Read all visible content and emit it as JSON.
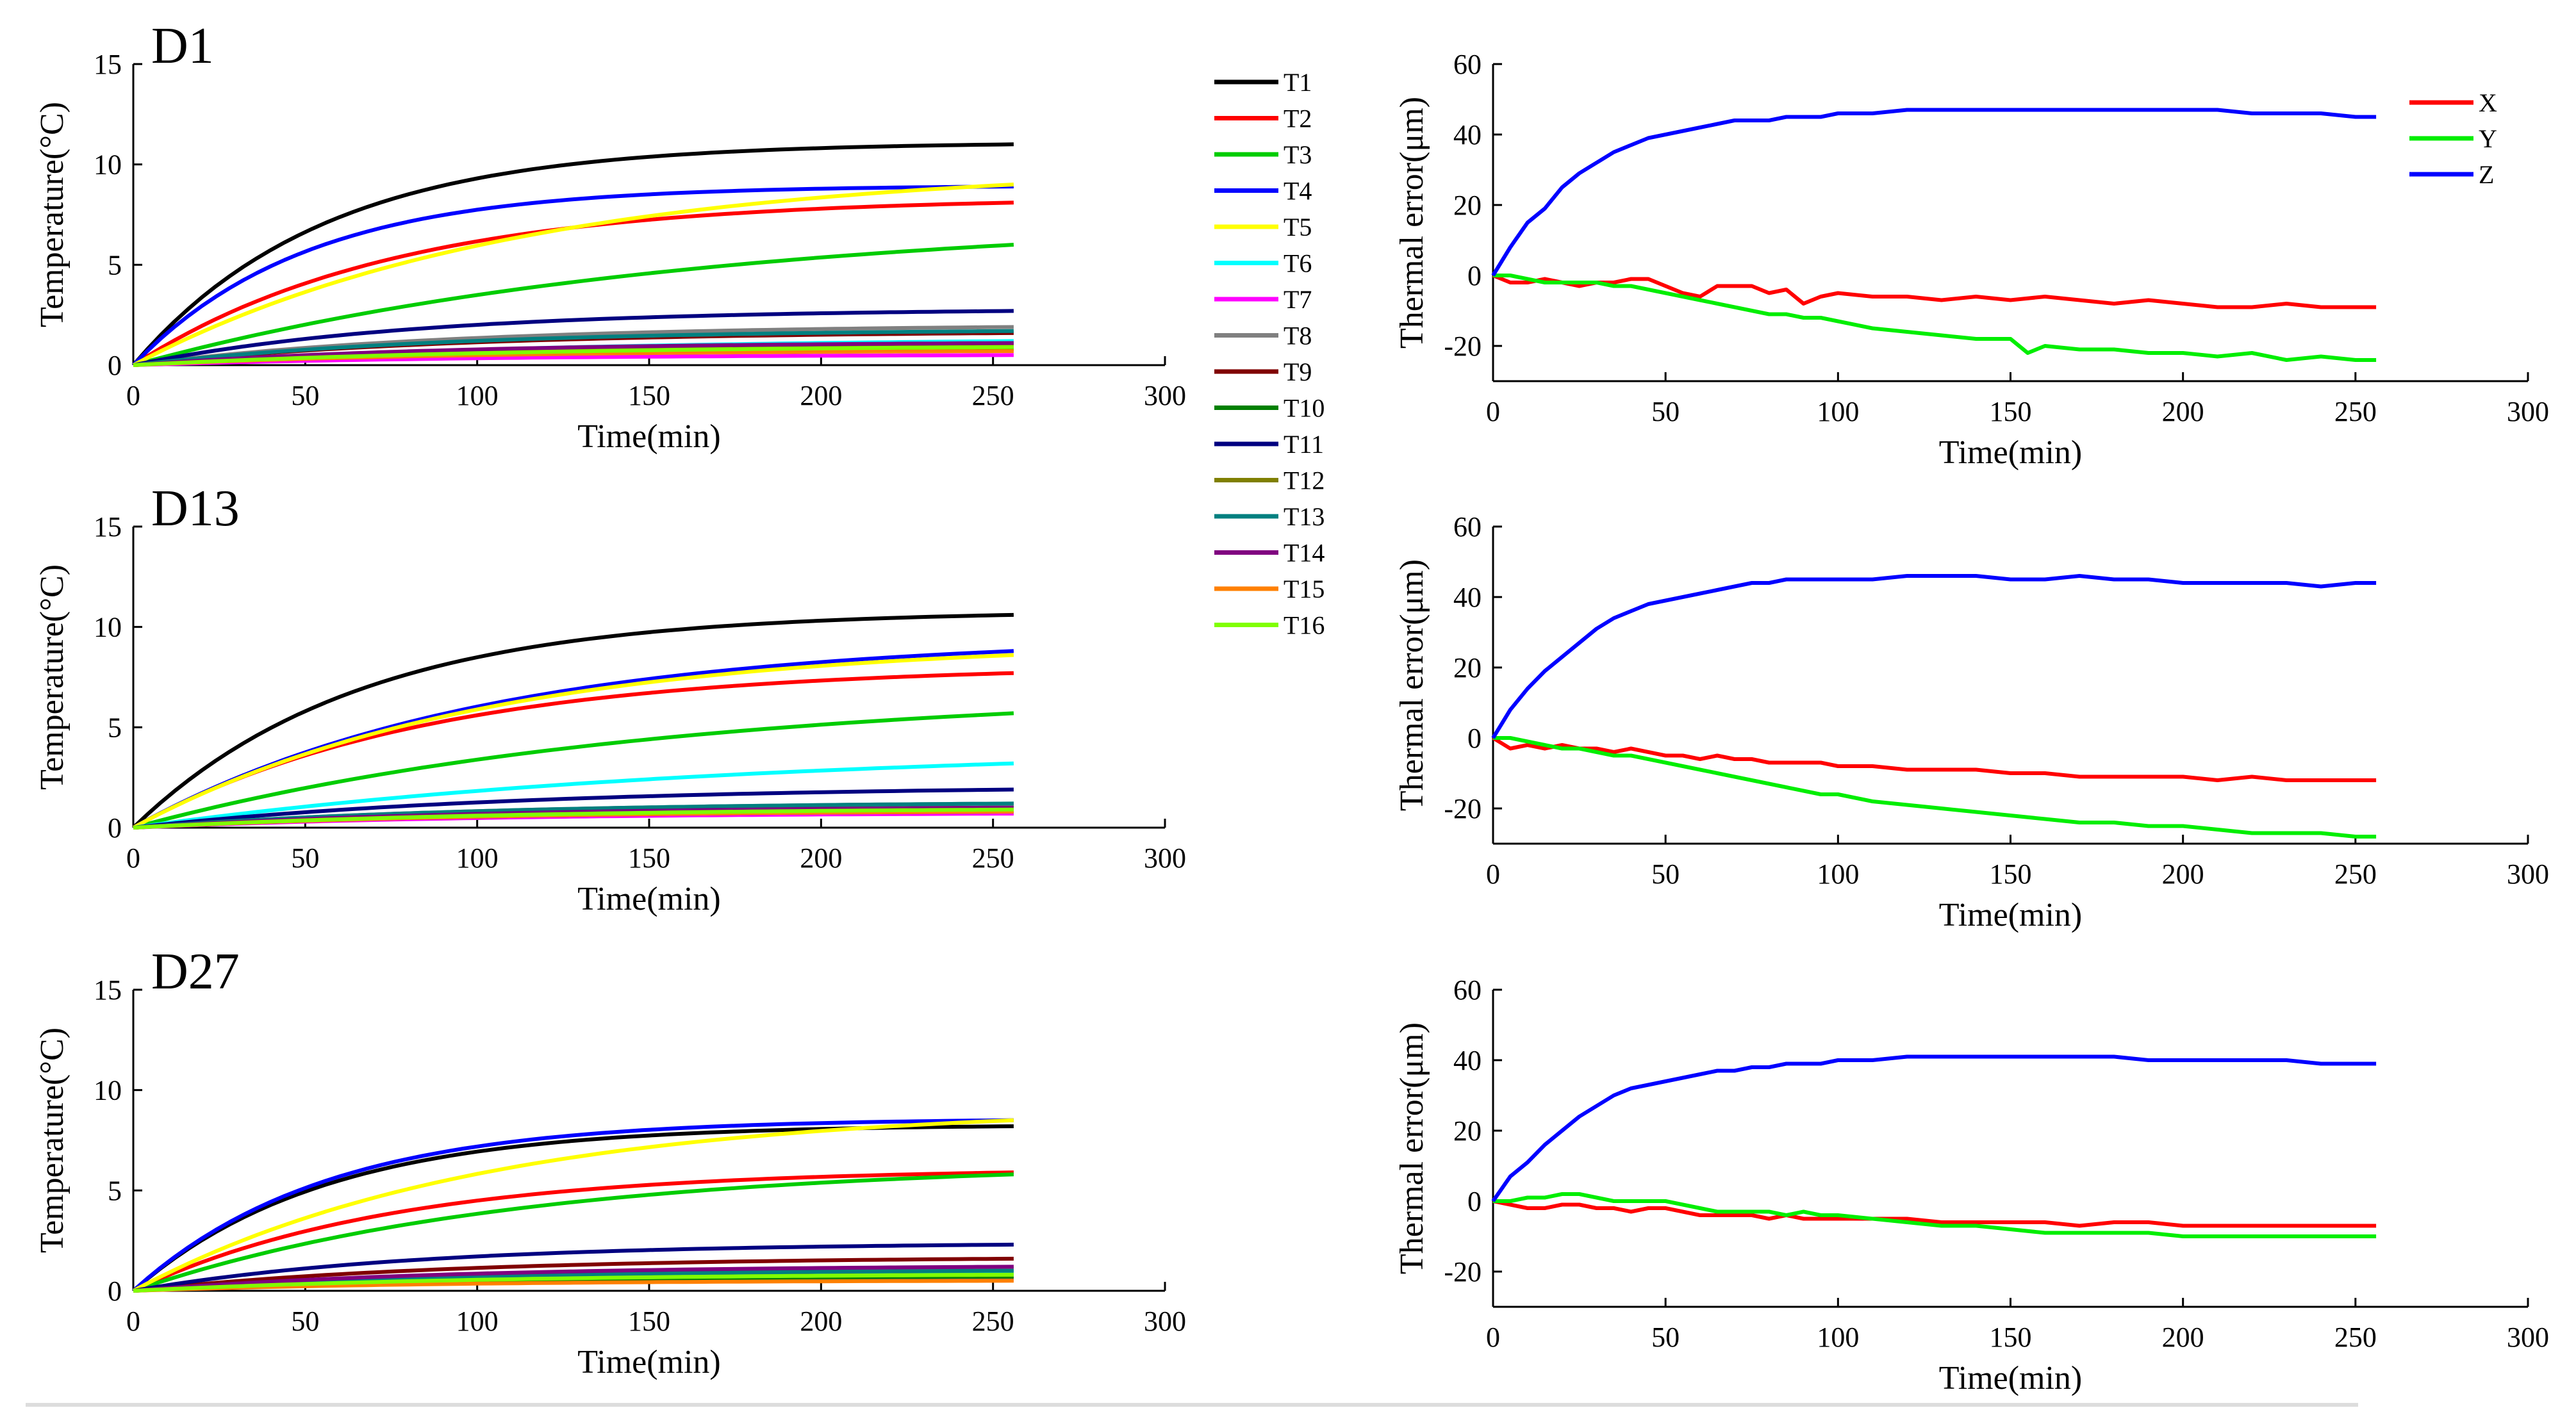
{
  "panels": [
    {
      "id": "temp-d1",
      "type": "temperature",
      "title": "D1",
      "xlabel": "Time(min)",
      "ylabel": "Temperature(°C)",
      "xlim": [
        0,
        300
      ],
      "ylim": [
        0,
        15
      ],
      "xticks": [
        0,
        50,
        100,
        150,
        200,
        250,
        300
      ],
      "yticks": [
        0,
        5,
        10,
        15
      ],
      "final": [
        11.0,
        8.1,
        6.0,
        8.9,
        9.0,
        1.2,
        0.5,
        1.9,
        1.6,
        0.8,
        2.7,
        1.0,
        1.7,
        1.1,
        0.7,
        0.9
      ],
      "tau": [
        55,
        75,
        160,
        50,
        110,
        120,
        100,
        90,
        90,
        90,
        80,
        90,
        90,
        90,
        90,
        110
      ]
    },
    {
      "id": "err-d1",
      "type": "error",
      "title": "",
      "xlabel": "Time(min)",
      "ylabel": "Thermal error(μm)",
      "xlim": [
        0,
        300
      ],
      "ylim": [
        -30,
        60
      ],
      "xticks": [
        0,
        50,
        100,
        150,
        200,
        250,
        300
      ],
      "yticks": [
        -20,
        0,
        20,
        40,
        60
      ],
      "series": [
        {
          "name": "X",
          "color": "#ff0000",
          "x": [
            0,
            5,
            10,
            15,
            20,
            25,
            30,
            35,
            40,
            45,
            50,
            55,
            60,
            65,
            70,
            75,
            80,
            85,
            90,
            95,
            100,
            110,
            120,
            130,
            140,
            150,
            160,
            170,
            180,
            190,
            200,
            210,
            220,
            230,
            240,
            250,
            256
          ],
          "y": [
            0,
            -2,
            -2,
            -1,
            -2,
            -3,
            -2,
            -2,
            -1,
            -1,
            -3,
            -5,
            -6,
            -3,
            -3,
            -3,
            -5,
            -4,
            -8,
            -6,
            -5,
            -6,
            -6,
            -7,
            -6,
            -7,
            -6,
            -7,
            -8,
            -7,
            -8,
            -9,
            -9,
            -8,
            -9,
            -9,
            -9
          ]
        },
        {
          "name": "Y",
          "color": "#00ee00",
          "x": [
            0,
            5,
            10,
            15,
            20,
            25,
            30,
            35,
            40,
            45,
            50,
            55,
            60,
            65,
            70,
            75,
            80,
            85,
            90,
            95,
            100,
            110,
            120,
            130,
            140,
            150,
            155,
            160,
            170,
            180,
            190,
            200,
            210,
            220,
            230,
            240,
            250,
            256
          ],
          "y": [
            0,
            0,
            -1,
            -2,
            -2,
            -2,
            -2,
            -3,
            -3,
            -4,
            -5,
            -6,
            -7,
            -8,
            -9,
            -10,
            -11,
            -11,
            -12,
            -12,
            -13,
            -15,
            -16,
            -17,
            -18,
            -18,
            -22,
            -20,
            -21,
            -21,
            -22,
            -22,
            -23,
            -22,
            -24,
            -23,
            -24,
            -24
          ]
        },
        {
          "name": "Z",
          "color": "#0000ff",
          "x": [
            0,
            5,
            10,
            15,
            20,
            25,
            30,
            35,
            40,
            45,
            50,
            55,
            60,
            65,
            70,
            75,
            80,
            85,
            90,
            95,
            100,
            110,
            120,
            130,
            140,
            150,
            160,
            170,
            180,
            190,
            200,
            210,
            220,
            230,
            240,
            250,
            256
          ],
          "y": [
            0,
            8,
            15,
            19,
            25,
            29,
            32,
            35,
            37,
            39,
            40,
            41,
            42,
            43,
            44,
            44,
            44,
            45,
            45,
            45,
            46,
            46,
            47,
            47,
            47,
            47,
            47,
            47,
            47,
            47,
            47,
            47,
            46,
            46,
            46,
            45,
            45
          ]
        }
      ]
    },
    {
      "id": "temp-d13",
      "type": "temperature",
      "title": "D13",
      "xlabel": "Time(min)",
      "ylabel": "Temperature(°C)",
      "xlim": [
        0,
        300
      ],
      "ylim": [
        0,
        15
      ],
      "xticks": [
        0,
        50,
        100,
        150,
        200,
        250,
        300
      ],
      "yticks": [
        0,
        5,
        10,
        15
      ],
      "final": [
        10.6,
        7.7,
        5.7,
        8.8,
        8.6,
        3.2,
        0.7,
        1.2,
        0.9,
        0.8,
        1.9,
        1.0,
        1.2,
        1.0,
        0.8,
        0.9
      ],
      "tau": [
        65,
        85,
        150,
        100,
        100,
        170,
        100,
        100,
        100,
        100,
        110,
        100,
        100,
        100,
        100,
        110
      ]
    },
    {
      "id": "err-d13",
      "type": "error",
      "title": "",
      "xlabel": "Time(min)",
      "ylabel": "Thermal error(μm)",
      "xlim": [
        0,
        300
      ],
      "ylim": [
        -30,
        60
      ],
      "xticks": [
        0,
        50,
        100,
        150,
        200,
        250,
        300
      ],
      "yticks": [
        -20,
        0,
        20,
        40,
        60
      ],
      "series": [
        {
          "name": "X",
          "color": "#ff0000",
          "x": [
            0,
            5,
            10,
            15,
            20,
            25,
            30,
            35,
            40,
            45,
            50,
            55,
            60,
            65,
            70,
            75,
            80,
            85,
            90,
            95,
            100,
            110,
            120,
            130,
            140,
            150,
            160,
            170,
            180,
            190,
            200,
            210,
            220,
            230,
            240,
            250,
            256
          ],
          "y": [
            0,
            -3,
            -2,
            -3,
            -2,
            -3,
            -3,
            -4,
            -3,
            -4,
            -5,
            -5,
            -6,
            -5,
            -6,
            -6,
            -7,
            -7,
            -7,
            -7,
            -8,
            -8,
            -9,
            -9,
            -9,
            -10,
            -10,
            -11,
            -11,
            -11,
            -11,
            -12,
            -11,
            -12,
            -12,
            -12,
            -12
          ]
        },
        {
          "name": "Y",
          "color": "#00ee00",
          "x": [
            0,
            5,
            10,
            15,
            20,
            25,
            30,
            35,
            40,
            45,
            50,
            55,
            60,
            65,
            70,
            75,
            80,
            85,
            90,
            95,
            100,
            110,
            120,
            130,
            140,
            150,
            160,
            170,
            180,
            190,
            200,
            210,
            220,
            230,
            240,
            250,
            256
          ],
          "y": [
            0,
            0,
            -1,
            -2,
            -3,
            -3,
            -4,
            -5,
            -5,
            -6,
            -7,
            -8,
            -9,
            -10,
            -11,
            -12,
            -13,
            -14,
            -15,
            -16,
            -16,
            -18,
            -19,
            -20,
            -21,
            -22,
            -23,
            -24,
            -24,
            -25,
            -25,
            -26,
            -27,
            -27,
            -27,
            -28,
            -28
          ]
        },
        {
          "name": "Z",
          "color": "#0000ff",
          "x": [
            0,
            5,
            10,
            15,
            20,
            25,
            30,
            35,
            40,
            45,
            50,
            55,
            60,
            65,
            70,
            75,
            80,
            85,
            90,
            95,
            100,
            110,
            120,
            130,
            140,
            150,
            160,
            170,
            180,
            190,
            200,
            210,
            220,
            230,
            240,
            250,
            256
          ],
          "y": [
            0,
            8,
            14,
            19,
            23,
            27,
            31,
            34,
            36,
            38,
            39,
            40,
            41,
            42,
            43,
            44,
            44,
            45,
            45,
            45,
            45,
            45,
            46,
            46,
            46,
            45,
            45,
            46,
            45,
            45,
            44,
            44,
            44,
            44,
            43,
            44,
            44
          ]
        }
      ]
    },
    {
      "id": "temp-d27",
      "type": "temperature",
      "title": "D27",
      "xlabel": "Time(min)",
      "ylabel": "Temperature(°C)",
      "xlim": [
        0,
        300
      ],
      "ylim": [
        0,
        15
      ],
      "xticks": [
        0,
        50,
        100,
        150,
        200,
        250,
        300
      ],
      "yticks": [
        0,
        5,
        10,
        15
      ],
      "final": [
        8.2,
        5.9,
        5.8,
        8.5,
        8.5,
        0.9,
        0.6,
        1.1,
        1.6,
        0.7,
        2.3,
        0.8,
        1.0,
        1.2,
        0.5,
        0.8
      ],
      "tau": [
        55,
        75,
        110,
        55,
        100,
        100,
        90,
        90,
        90,
        90,
        80,
        90,
        90,
        90,
        90,
        100
      ]
    },
    {
      "id": "err-d27",
      "type": "error",
      "title": "",
      "xlabel": "Time(min)",
      "ylabel": "Thermal error(μm)",
      "xlim": [
        0,
        300
      ],
      "ylim": [
        -30,
        60
      ],
      "xticks": [
        0,
        50,
        100,
        150,
        200,
        250,
        300
      ],
      "yticks": [
        -20,
        0,
        20,
        40,
        60
      ],
      "series": [
        {
          "name": "X",
          "color": "#ff0000",
          "x": [
            0,
            5,
            10,
            15,
            20,
            25,
            30,
            35,
            40,
            45,
            50,
            55,
            60,
            65,
            70,
            75,
            80,
            85,
            90,
            95,
            100,
            110,
            120,
            130,
            140,
            150,
            160,
            170,
            180,
            190,
            200,
            210,
            220,
            230,
            240,
            250,
            256
          ],
          "y": [
            0,
            -1,
            -2,
            -2,
            -1,
            -1,
            -2,
            -2,
            -3,
            -2,
            -2,
            -3,
            -4,
            -4,
            -4,
            -4,
            -5,
            -4,
            -5,
            -5,
            -5,
            -5,
            -5,
            -6,
            -6,
            -6,
            -6,
            -7,
            -6,
            -6,
            -7,
            -7,
            -7,
            -7,
            -7,
            -7,
            -7
          ]
        },
        {
          "name": "Y",
          "color": "#00ee00",
          "x": [
            0,
            5,
            10,
            15,
            20,
            25,
            30,
            35,
            40,
            45,
            50,
            55,
            60,
            65,
            70,
            75,
            80,
            85,
            90,
            95,
            100,
            110,
            120,
            130,
            140,
            150,
            160,
            170,
            180,
            190,
            200,
            210,
            220,
            230,
            240,
            250,
            256
          ],
          "y": [
            0,
            0,
            1,
            1,
            2,
            2,
            1,
            0,
            0,
            0,
            0,
            -1,
            -2,
            -3,
            -3,
            -3,
            -3,
            -4,
            -3,
            -4,
            -4,
            -5,
            -6,
            -7,
            -7,
            -8,
            -9,
            -9,
            -9,
            -9,
            -10,
            -10,
            -10,
            -10,
            -10,
            -10,
            -10
          ]
        },
        {
          "name": "Z",
          "color": "#0000ff",
          "x": [
            0,
            5,
            10,
            15,
            20,
            25,
            30,
            35,
            40,
            45,
            50,
            55,
            60,
            65,
            70,
            75,
            80,
            85,
            90,
            95,
            100,
            110,
            120,
            130,
            140,
            150,
            160,
            170,
            180,
            190,
            200,
            210,
            220,
            230,
            240,
            250,
            256
          ],
          "y": [
            0,
            7,
            11,
            16,
            20,
            24,
            27,
            30,
            32,
            33,
            34,
            35,
            36,
            37,
            37,
            38,
            38,
            39,
            39,
            39,
            40,
            40,
            41,
            41,
            41,
            41,
            41,
            41,
            41,
            40,
            40,
            40,
            40,
            40,
            39,
            39,
            39
          ]
        }
      ]
    }
  ],
  "temp_legend": [
    {
      "name": "T1",
      "color": "#000000"
    },
    {
      "name": "T2",
      "color": "#ff0000"
    },
    {
      "name": "T3",
      "color": "#00cc00"
    },
    {
      "name": "T4",
      "color": "#0000ff"
    },
    {
      "name": "T5",
      "color": "#ffff00"
    },
    {
      "name": "T6",
      "color": "#00ffff"
    },
    {
      "name": "T7",
      "color": "#ff00ff"
    },
    {
      "name": "T8",
      "color": "#808080"
    },
    {
      "name": "T9",
      "color": "#800000"
    },
    {
      "name": "T10",
      "color": "#008000"
    },
    {
      "name": "T11",
      "color": "#000080"
    },
    {
      "name": "T12",
      "color": "#808000"
    },
    {
      "name": "T13",
      "color": "#008080"
    },
    {
      "name": "T14",
      "color": "#800080"
    },
    {
      "name": "T15",
      "color": "#ff8000"
    },
    {
      "name": "T16",
      "color": "#80ff00"
    }
  ],
  "error_legend": [
    {
      "name": "X",
      "color": "#ff0000"
    },
    {
      "name": "Y",
      "color": "#00ee00"
    },
    {
      "name": "Z",
      "color": "#0000ff"
    }
  ]
}
